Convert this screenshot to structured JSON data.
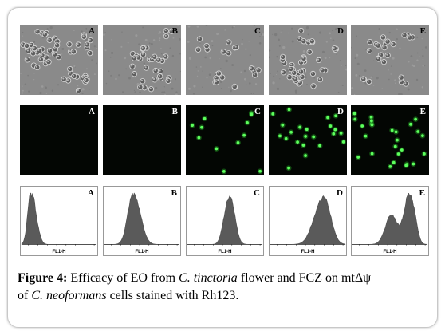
{
  "figure": {
    "panels": {
      "brightfield": [
        "A",
        "B",
        "C",
        "D",
        "E"
      ],
      "fluorescence": [
        "A",
        "B",
        "C",
        "D",
        "E"
      ],
      "histogram": [
        "A",
        "B",
        "C",
        "D",
        "E"
      ]
    },
    "histogram_axis_label": "FL1-H",
    "caption": {
      "label": "Figure 4:",
      "text_1": " Efficacy of EO from ",
      "species_1": "C. tinctoria",
      "text_2": " flower and FCZ on mtΔψ",
      "text_3": "of ",
      "species_2": "C. neoformans",
      "text_4": " cells stained with Rh123."
    }
  }
}
